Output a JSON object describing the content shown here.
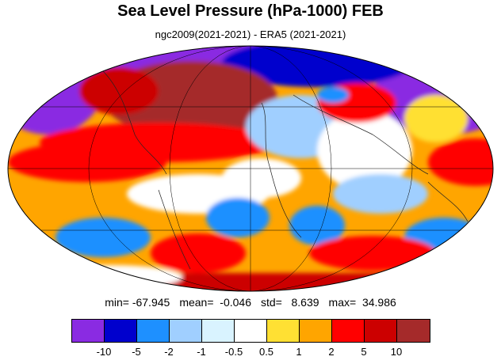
{
  "title": "Sea Level Pressure (hPa-1000) FEB",
  "subtitle": "ngc2009(2021-2021) - ERA5 (2021-2021)",
  "stats": {
    "min": "min= -67.945",
    "mean": "mean=  -0.046",
    "std": "std=   8.639",
    "max": "max=  34.986"
  },
  "colorbar": {
    "colors": [
      "#8a2be2",
      "#0000cd",
      "#1e90ff",
      "#a0cfff",
      "#d9f3ff",
      "#ffffff",
      "#ffe033",
      "#ffa500",
      "#ff0000",
      "#cc0000",
      "#a52a2a"
    ],
    "tick_labels": [
      "-10",
      "-5",
      "-2",
      "-1",
      "-0.5",
      "0.5",
      "1",
      "2",
      "5",
      "10"
    ]
  }
}
